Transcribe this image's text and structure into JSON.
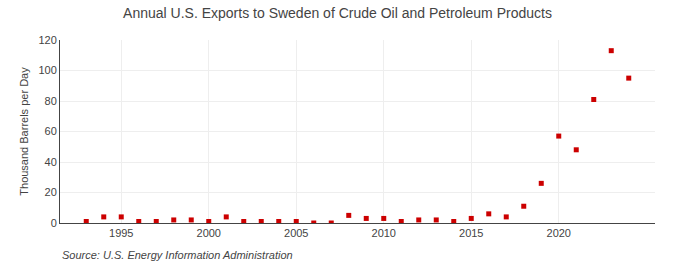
{
  "chart_data": {
    "type": "scatter",
    "title": "Annual U.S. Exports to Sweden of Crude Oil and Petroleum Products",
    "ylabel": "Thousand Barrels per Day",
    "annotations": [
      "Source: U.S. Energy Information Administration"
    ],
    "x": [
      1993,
      1994,
      1995,
      1996,
      1997,
      1998,
      1999,
      2000,
      2001,
      2002,
      2003,
      2004,
      2005,
      2006,
      2007,
      2008,
      2009,
      2010,
      2011,
      2012,
      2013,
      2014,
      2015,
      2016,
      2017,
      2018,
      2019,
      2020,
      2021,
      2022,
      2023,
      2024
    ],
    "values": [
      1,
      4,
      4,
      1,
      1,
      2,
      2,
      1,
      4,
      1,
      1,
      1,
      1,
      0,
      0,
      5,
      3,
      3,
      1,
      2,
      2,
      1,
      3,
      6,
      4,
      11,
      26,
      57,
      48,
      81,
      113,
      95
    ],
    "color": "#cc0000",
    "marker": "square",
    "xlim": [
      1991.5,
      2025.5
    ],
    "xticks": [
      1995,
      2000,
      2005,
      2010,
      2015,
      2020
    ],
    "ylim": [
      0,
      120
    ],
    "yticks": [
      0,
      20,
      40,
      60,
      80,
      100,
      120
    ],
    "grid": true
  }
}
